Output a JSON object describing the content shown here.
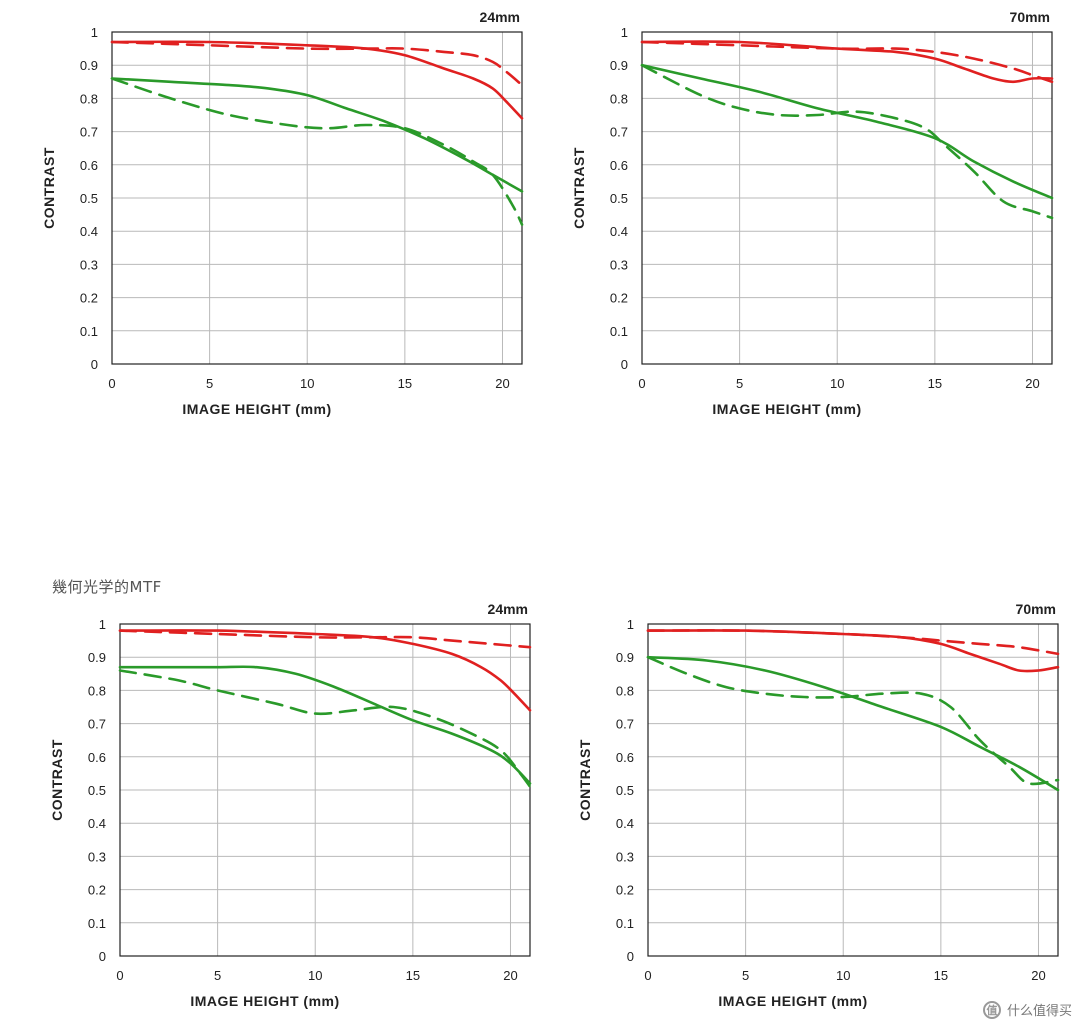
{
  "section_caption": "幾何光学的MTF",
  "watermark": {
    "icon": "zhi-logo-icon",
    "text": "什么值得买"
  },
  "colors": {
    "red": "#e02020",
    "green": "#2a9a2a",
    "grid": "#b9b9b9",
    "axis": "#222222"
  },
  "chart_data": [
    {
      "type": "line",
      "title": "24mm",
      "xlabel": "IMAGE HEIGHT (mm)",
      "ylabel": "CONTRAST",
      "xlim": [
        0,
        21
      ],
      "ylim": [
        0,
        1
      ],
      "xticks": [
        0,
        5,
        10,
        15,
        20
      ],
      "yticks": [
        0,
        0.1,
        0.2,
        0.3,
        0.4,
        0.5,
        0.6,
        0.7,
        0.8,
        0.9,
        1
      ],
      "ytick_labels": [
        "0",
        "0.1",
        "0.2",
        "0.3",
        "0.4",
        "0.5",
        "0.6",
        "0.7",
        "0.8",
        "0.9",
        "1"
      ],
      "grid": true,
      "series": [
        {
          "color": "red",
          "style": "solid",
          "x": [
            0,
            5,
            10,
            13,
            15,
            17,
            18.5,
            19.5,
            20.2,
            21
          ],
          "y": [
            0.97,
            0.97,
            0.96,
            0.95,
            0.93,
            0.89,
            0.86,
            0.83,
            0.79,
            0.74
          ]
        },
        {
          "color": "red",
          "style": "dashed",
          "x": [
            0,
            5,
            10,
            13,
            15,
            17,
            18.5,
            19.5,
            20.2,
            21
          ],
          "y": [
            0.97,
            0.96,
            0.95,
            0.95,
            0.95,
            0.94,
            0.93,
            0.91,
            0.88,
            0.84
          ]
        },
        {
          "color": "green",
          "style": "solid",
          "x": [
            0,
            3,
            6,
            8,
            10,
            12,
            14,
            16,
            18,
            19.5,
            21
          ],
          "y": [
            0.86,
            0.85,
            0.84,
            0.83,
            0.81,
            0.77,
            0.73,
            0.68,
            0.62,
            0.57,
            0.52
          ]
        },
        {
          "color": "green",
          "style": "dashed",
          "x": [
            0,
            3,
            6,
            9,
            11,
            13,
            15,
            17,
            18.5,
            19.5,
            20.5,
            21
          ],
          "y": [
            0.86,
            0.8,
            0.75,
            0.72,
            0.71,
            0.72,
            0.71,
            0.66,
            0.61,
            0.57,
            0.48,
            0.42
          ]
        }
      ]
    },
    {
      "type": "line",
      "title": "70mm",
      "xlabel": "IMAGE HEIGHT (mm)",
      "ylabel": "CONTRAST",
      "xlim": [
        0,
        21
      ],
      "ylim": [
        0,
        1
      ],
      "xticks": [
        0,
        5,
        10,
        15,
        20
      ],
      "yticks": [
        0,
        0.1,
        0.2,
        0.3,
        0.4,
        0.5,
        0.6,
        0.7,
        0.8,
        0.9,
        1
      ],
      "ytick_labels": [
        "0",
        "0.1",
        "0.2",
        "0.3",
        "0.4",
        "0.5",
        "0.6",
        "0.7",
        "0.8",
        "0.9",
        "1"
      ],
      "grid": true,
      "series": [
        {
          "color": "red",
          "style": "solid",
          "x": [
            0,
            5,
            10,
            13,
            15,
            16.5,
            18,
            19,
            20,
            21
          ],
          "y": [
            0.97,
            0.97,
            0.95,
            0.94,
            0.92,
            0.89,
            0.86,
            0.85,
            0.86,
            0.86
          ]
        },
        {
          "color": "red",
          "style": "dashed",
          "x": [
            0,
            5,
            10,
            13,
            15,
            17,
            19,
            20,
            21
          ],
          "y": [
            0.97,
            0.96,
            0.95,
            0.95,
            0.94,
            0.92,
            0.89,
            0.87,
            0.85
          ]
        },
        {
          "color": "green",
          "style": "solid",
          "x": [
            0,
            3,
            6,
            9,
            12,
            15,
            17,
            19,
            21
          ],
          "y": [
            0.9,
            0.86,
            0.82,
            0.77,
            0.73,
            0.68,
            0.61,
            0.55,
            0.5
          ]
        },
        {
          "color": "green",
          "style": "dashed",
          "x": [
            0,
            3,
            5,
            7,
            9,
            11,
            13,
            14.5,
            15.5,
            17,
            18.5,
            20,
            21
          ],
          "y": [
            0.9,
            0.81,
            0.77,
            0.75,
            0.75,
            0.76,
            0.74,
            0.71,
            0.66,
            0.58,
            0.49,
            0.46,
            0.44
          ]
        }
      ]
    },
    {
      "type": "line",
      "title": "24mm",
      "xlabel": "IMAGE HEIGHT (mm)",
      "ylabel": "CONTRAST",
      "xlim": [
        0,
        21
      ],
      "ylim": [
        0,
        1
      ],
      "xticks": [
        0,
        5,
        10,
        15,
        20
      ],
      "yticks": [
        0,
        0.1,
        0.2,
        0.3,
        0.4,
        0.5,
        0.6,
        0.7,
        0.8,
        0.9,
        1
      ],
      "ytick_labels": [
        "0",
        "0.1",
        "0.2",
        "0.3",
        "0.4",
        "0.5",
        "0.6",
        "0.7",
        "0.8",
        "0.9",
        "1"
      ],
      "grid": true,
      "series": [
        {
          "color": "red",
          "style": "solid",
          "x": [
            0,
            5,
            10,
            13,
            15,
            17,
            18.5,
            19.5,
            20.2,
            21
          ],
          "y": [
            0.98,
            0.98,
            0.97,
            0.96,
            0.94,
            0.91,
            0.87,
            0.83,
            0.79,
            0.74
          ]
        },
        {
          "color": "red",
          "style": "dashed",
          "x": [
            0,
            5,
            10,
            13,
            15,
            17,
            19,
            21
          ],
          "y": [
            0.98,
            0.97,
            0.96,
            0.96,
            0.96,
            0.95,
            0.94,
            0.93
          ]
        },
        {
          "color": "green",
          "style": "solid",
          "x": [
            0,
            3,
            5,
            7,
            9,
            11,
            13,
            15,
            17,
            19,
            20,
            21
          ],
          "y": [
            0.87,
            0.87,
            0.87,
            0.87,
            0.85,
            0.81,
            0.76,
            0.71,
            0.67,
            0.62,
            0.58,
            0.52
          ]
        },
        {
          "color": "green",
          "style": "dashed",
          "x": [
            0,
            3,
            5,
            8,
            10,
            12,
            14,
            16,
            18,
            19.5,
            20.5,
            21
          ],
          "y": [
            0.86,
            0.83,
            0.8,
            0.76,
            0.73,
            0.74,
            0.75,
            0.72,
            0.67,
            0.62,
            0.55,
            0.51
          ]
        }
      ]
    },
    {
      "type": "line",
      "title": "70mm",
      "xlabel": "IMAGE HEIGHT (mm)",
      "ylabel": "CONTRAST",
      "xlim": [
        0,
        21
      ],
      "ylim": [
        0,
        1
      ],
      "xticks": [
        0,
        5,
        10,
        15,
        20
      ],
      "yticks": [
        0,
        0.1,
        0.2,
        0.3,
        0.4,
        0.5,
        0.6,
        0.7,
        0.8,
        0.9,
        1
      ],
      "ytick_labels": [
        "0",
        "0.1",
        "0.2",
        "0.3",
        "0.4",
        "0.5",
        "0.6",
        "0.7",
        "0.8",
        "0.9",
        "1"
      ],
      "grid": true,
      "series": [
        {
          "color": "red",
          "style": "solid",
          "x": [
            0,
            5,
            10,
            13,
            15,
            16.5,
            18,
            19,
            20,
            21
          ],
          "y": [
            0.98,
            0.98,
            0.97,
            0.96,
            0.94,
            0.91,
            0.88,
            0.86,
            0.86,
            0.87
          ]
        },
        {
          "color": "red",
          "style": "dashed",
          "x": [
            0,
            5,
            10,
            13,
            15,
            17,
            19,
            21
          ],
          "y": [
            0.98,
            0.98,
            0.97,
            0.96,
            0.95,
            0.94,
            0.93,
            0.91
          ]
        },
        {
          "color": "green",
          "style": "solid",
          "x": [
            0,
            3,
            6,
            9,
            12,
            15,
            17,
            19,
            21
          ],
          "y": [
            0.9,
            0.89,
            0.86,
            0.81,
            0.75,
            0.69,
            0.63,
            0.57,
            0.5
          ]
        },
        {
          "color": "green",
          "style": "dashed",
          "x": [
            0,
            2,
            4,
            6,
            8,
            10,
            12,
            14,
            15.5,
            17,
            18.5,
            19.5,
            21
          ],
          "y": [
            0.9,
            0.85,
            0.81,
            0.79,
            0.78,
            0.78,
            0.79,
            0.79,
            0.75,
            0.65,
            0.57,
            0.52,
            0.53
          ]
        }
      ]
    }
  ]
}
